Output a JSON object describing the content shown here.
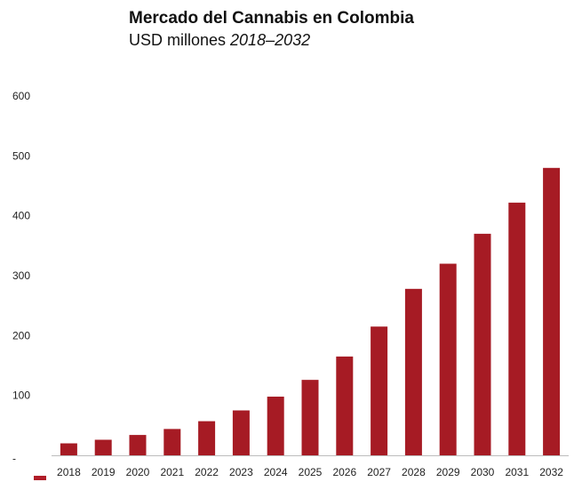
{
  "colors": {
    "bar": "#a61b24",
    "axis": "#bdbdbd",
    "text": "#222222",
    "background": "#ffffff"
  },
  "chart_data": {
    "type": "bar",
    "title": "Mercado del Cannabis en Colombia",
    "subtitle_main": "USD millones ",
    "subtitle_range": "2018–2032",
    "xlabel": "",
    "ylabel": "",
    "categories": [
      "2018",
      "2019",
      "2020",
      "2021",
      "2022",
      "2023",
      "2024",
      "2025",
      "2026",
      "2027",
      "2028",
      "2029",
      "2030",
      "2031",
      "2032"
    ],
    "values": [
      20,
      26,
      34,
      44,
      57,
      75,
      98,
      126,
      165,
      215,
      278,
      320,
      370,
      422,
      480
    ],
    "ylim": [
      -10,
      600
    ],
    "yticks": [
      {
        "value": 600,
        "label": "600"
      },
      {
        "value": 500,
        "label": "500"
      },
      {
        "value": 400,
        "label": "400"
      },
      {
        "value": 300,
        "label": "300"
      },
      {
        "value": 200,
        "label": "200"
      },
      {
        "value": 100,
        "label": "100"
      },
      {
        "value": -5,
        "label": "-"
      }
    ],
    "grid": false,
    "legend": "none"
  }
}
